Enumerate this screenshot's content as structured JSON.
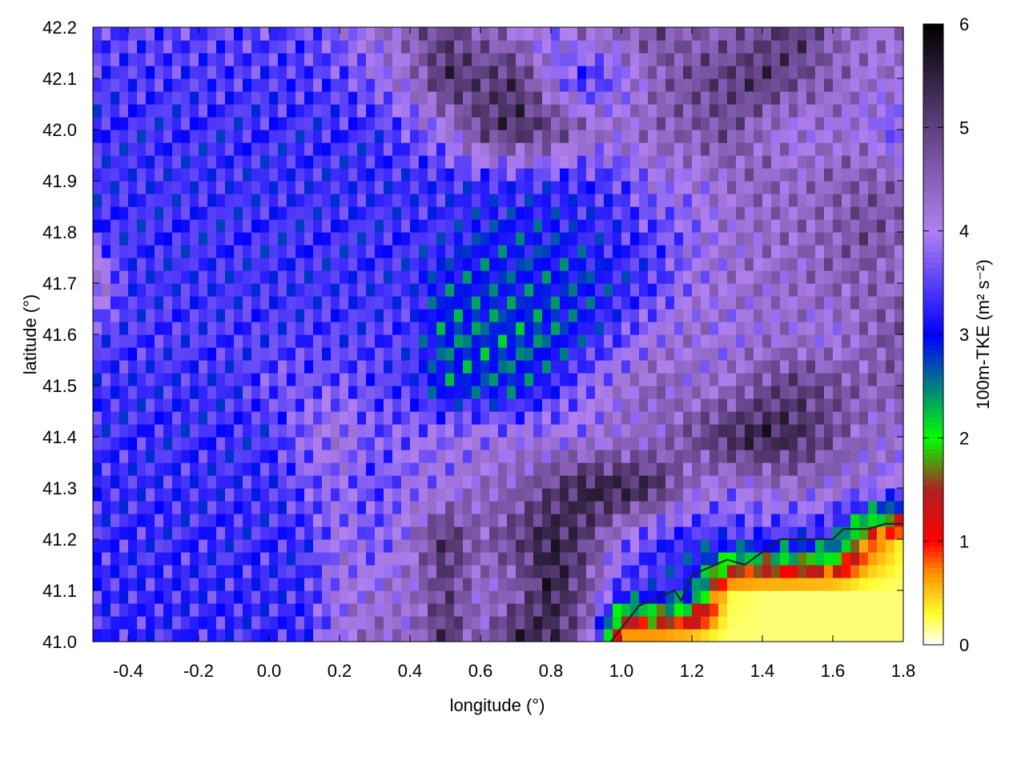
{
  "chart_data": {
    "type": "heatmap",
    "xlabel": "longitude (°)",
    "ylabel": "latitude (°)",
    "colorbar_label": "100m-TKE (m² s⁻²)",
    "xlim": [
      -0.5,
      1.8
    ],
    "ylim": [
      41.0,
      42.2
    ],
    "clim": [
      0,
      6
    ],
    "x_ticks": [
      "-0.4",
      "-0.2",
      "0.0",
      "0.2",
      "0.4",
      "0.6",
      "0.8",
      "1.0",
      "1.2",
      "1.4",
      "1.6",
      "1.8"
    ],
    "y_ticks": [
      "41.0",
      "41.1",
      "41.2",
      "41.3",
      "41.4",
      "41.5",
      "41.6",
      "41.7",
      "41.8",
      "41.9",
      "42.0",
      "42.1",
      "42.2"
    ],
    "colorbar_ticks": [
      "0",
      "1",
      "2",
      "3",
      "4",
      "5",
      "6"
    ],
    "palette": [
      {
        "value": 0,
        "color": "#ffffff"
      },
      {
        "value": 0.3,
        "color": "#ffff30"
      },
      {
        "value": 0.7,
        "color": "#ff9000"
      },
      {
        "value": 1.0,
        "color": "#ff0000"
      },
      {
        "value": 1.5,
        "color": "#b02020"
      },
      {
        "value": 2.0,
        "color": "#00ff00"
      },
      {
        "value": 2.5,
        "color": "#008080"
      },
      {
        "value": 3.0,
        "color": "#0000ff"
      },
      {
        "value": 4.0,
        "color": "#b080f0"
      },
      {
        "value": 5.0,
        "color": "#604080"
      },
      {
        "value": 6.0,
        "color": "#000000"
      }
    ],
    "grid_lon": [
      -0.5,
      -0.4,
      -0.3,
      -0.2,
      -0.1,
      0.0,
      0.1,
      0.2,
      0.3,
      0.4,
      0.5,
      0.6,
      0.7,
      0.8,
      0.9,
      1.0,
      1.1,
      1.2,
      1.3,
      1.4,
      1.5,
      1.6,
      1.7,
      1.8
    ],
    "grid_lat": [
      42.2,
      42.1,
      42.0,
      41.9,
      41.8,
      41.7,
      41.6,
      41.5,
      41.4,
      41.3,
      41.2,
      41.1,
      41.0
    ],
    "values": [
      [
        3.5,
        3.5,
        3.5,
        3.5,
        3.5,
        3.5,
        3.5,
        3.8,
        4.2,
        4.5,
        5.0,
        4.5,
        4.2,
        3.8,
        4.5,
        4.5,
        4.8,
        4.5,
        4.5,
        4.8,
        5.2,
        4.5,
        4.3,
        4.2
      ],
      [
        3.4,
        3.4,
        3.4,
        3.4,
        3.4,
        3.4,
        3.4,
        3.5,
        3.8,
        4.3,
        5.3,
        5.0,
        5.2,
        4.0,
        3.2,
        3.8,
        4.5,
        4.8,
        5.0,
        5.2,
        4.8,
        4.5,
        4.2,
        4.3
      ],
      [
        3.3,
        3.3,
        3.3,
        3.3,
        3.3,
        3.3,
        3.3,
        3.3,
        3.3,
        3.6,
        4.0,
        5.0,
        5.3,
        5.0,
        4.5,
        4.2,
        4.5,
        4.6,
        4.8,
        4.3,
        4.0,
        4.2,
        4.0,
        3.5
      ],
      [
        3.3,
        3.3,
        3.3,
        3.3,
        3.3,
        3.3,
        3.3,
        3.3,
        3.3,
        3.3,
        3.3,
        3.3,
        3.3,
        3.3,
        3.3,
        3.5,
        4.0,
        4.0,
        4.3,
        4.5,
        4.3,
        4.5,
        4.6,
        4.5
      ],
      [
        3.3,
        3.3,
        3.3,
        3.3,
        3.3,
        3.3,
        3.3,
        3.3,
        3.3,
        3.3,
        3.3,
        3.0,
        3.0,
        3.0,
        3.2,
        3.3,
        3.5,
        3.8,
        4.2,
        4.3,
        4.4,
        4.5,
        4.8,
        4.5
      ],
      [
        4.5,
        3.3,
        3.3,
        3.3,
        3.3,
        3.3,
        3.3,
        3.3,
        3.3,
        3.3,
        2.9,
        2.9,
        2.9,
        2.9,
        2.9,
        3.2,
        3.4,
        4.0,
        4.2,
        4.3,
        4.3,
        4.5,
        4.5,
        4.3
      ],
      [
        3.4,
        3.4,
        3.4,
        3.4,
        3.4,
        3.4,
        3.4,
        3.4,
        3.4,
        3.4,
        2.7,
        2.7,
        2.7,
        2.7,
        3.1,
        3.5,
        4.0,
        4.2,
        4.0,
        4.2,
        4.2,
        4.0,
        4.5,
        4.8
      ],
      [
        3.3,
        3.3,
        3.3,
        3.3,
        3.3,
        3.6,
        3.6,
        3.6,
        3.5,
        3.3,
        2.8,
        2.8,
        2.8,
        3.2,
        3.8,
        4.2,
        4.5,
        4.2,
        4.3,
        4.8,
        5.0,
        4.8,
        4.5,
        4.5
      ],
      [
        3.3,
        3.3,
        3.3,
        3.3,
        3.3,
        3.3,
        3.8,
        4.2,
        3.6,
        3.8,
        3.9,
        4.0,
        4.0,
        4.0,
        4.0,
        4.2,
        4.3,
        4.8,
        5.3,
        5.5,
        5.3,
        4.8,
        4.3,
        4.2
      ],
      [
        3.3,
        3.3,
        3.3,
        3.3,
        3.3,
        3.3,
        3.6,
        3.8,
        3.5,
        3.9,
        4.0,
        4.3,
        4.5,
        5.0,
        5.5,
        5.5,
        5.3,
        4.3,
        4.0,
        4.2,
        4.3,
        4.2,
        4.0,
        3.8
      ],
      [
        3.3,
        3.3,
        3.3,
        3.3,
        3.3,
        3.3,
        3.3,
        4.0,
        3.6,
        4.2,
        5.3,
        4.5,
        5.0,
        5.5,
        5.0,
        4.0,
        3.3,
        3.2,
        3.3,
        3.3,
        3.2,
        3.0,
        1.0,
        0.3
      ],
      [
        3.3,
        3.3,
        3.3,
        3.3,
        3.3,
        3.3,
        3.3,
        4.0,
        4.1,
        4.2,
        5.0,
        4.2,
        4.5,
        5.5,
        4.8,
        3.3,
        3.3,
        3.0,
        0.3,
        0.2,
        0.2,
        0.2,
        0.2,
        0.2
      ],
      [
        3.3,
        3.3,
        3.3,
        3.3,
        3.3,
        3.3,
        3.3,
        4.0,
        4.5,
        4.2,
        5.3,
        4.3,
        5.5,
        5.3,
        4.5,
        0.3,
        0.3,
        0.2,
        0.2,
        0.2,
        0.2,
        0.2,
        0.2,
        0.2
      ]
    ],
    "coastline": [
      [
        0.97,
        41.0
      ],
      [
        1.05,
        41.07
      ],
      [
        1.15,
        41.1
      ],
      [
        1.17,
        41.08
      ],
      [
        1.2,
        41.13
      ],
      [
        1.3,
        41.16
      ],
      [
        1.35,
        41.15
      ],
      [
        1.45,
        41.2
      ],
      [
        1.5,
        41.2
      ],
      [
        1.6,
        41.2
      ],
      [
        1.63,
        41.22
      ],
      [
        1.7,
        41.22
      ],
      [
        1.75,
        41.23
      ],
      [
        1.8,
        41.23
      ]
    ],
    "grid": false,
    "legend": "colorbar-right"
  }
}
